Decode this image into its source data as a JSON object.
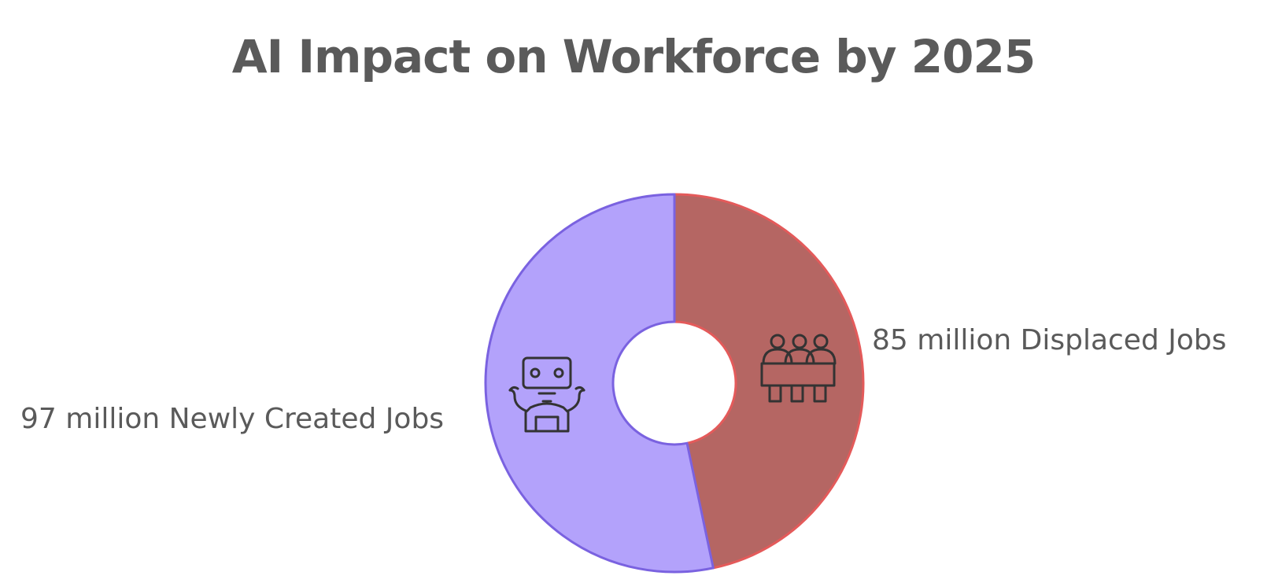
{
  "chart_data": {
    "type": "pie",
    "title": "AI Impact on Workforce by 2025",
    "slices": [
      {
        "label": "85 million Displaced Jobs",
        "value": 85,
        "fill": "#b56663",
        "stroke": "#e45a5a",
        "icon": "people-group-icon"
      },
      {
        "label": "97 million Newly Created Jobs",
        "value": 97,
        "fill": "#b3a2fb",
        "stroke": "#7a62e0",
        "icon": "robot-icon"
      }
    ],
    "style": "donut",
    "start": "top",
    "direction": "clockwise"
  }
}
